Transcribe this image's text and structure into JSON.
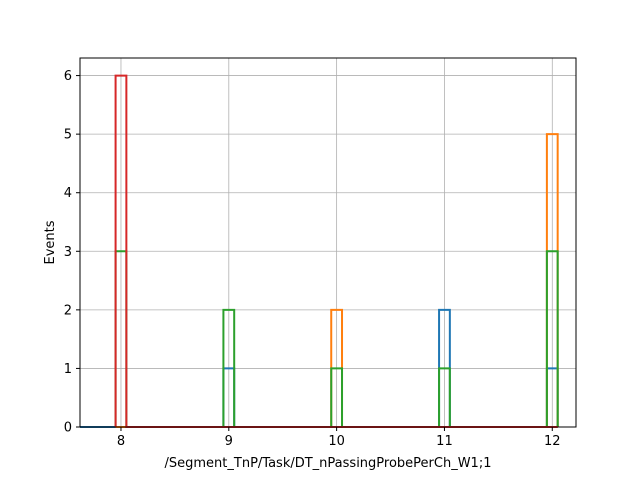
{
  "chart_data": {
    "type": "bar",
    "histtype": "step",
    "title": "",
    "xlabel": "/Segment_TnP/Task/DT_nPassingProbePerCh_W1;1",
    "ylabel": "Events",
    "xlim": [
      7.62,
      12.22
    ],
    "ylim": [
      0,
      6.3
    ],
    "xticks": [
      8,
      9,
      10,
      11,
      12
    ],
    "yticks": [
      0,
      1,
      2,
      3,
      4,
      5,
      6
    ],
    "grid": true,
    "legend": "none",
    "bin_edges": [
      7.95,
      8.05,
      8.95,
      9.05,
      9.95,
      10.05,
      10.95,
      11.05,
      11.95,
      12.05
    ],
    "series": [
      {
        "color": "#1f77b4",
        "values": [
          0,
          0,
          1,
          0,
          0,
          0,
          2,
          0,
          1
        ]
      },
      {
        "color": "#ff7f0e",
        "values": [
          0,
          0,
          0,
          0,
          2,
          0,
          0,
          0,
          5
        ]
      },
      {
        "color": "#2ca02c",
        "values": [
          3,
          0,
          2,
          0,
          1,
          0,
          1,
          0,
          3
        ]
      },
      {
        "color": "#d62728",
        "values": [
          6,
          0,
          0,
          0,
          0,
          0,
          0,
          0,
          0
        ]
      }
    ],
    "baseline": {
      "color": "#1f77b4",
      "x": [
        7.62,
        12.05
      ]
    }
  }
}
